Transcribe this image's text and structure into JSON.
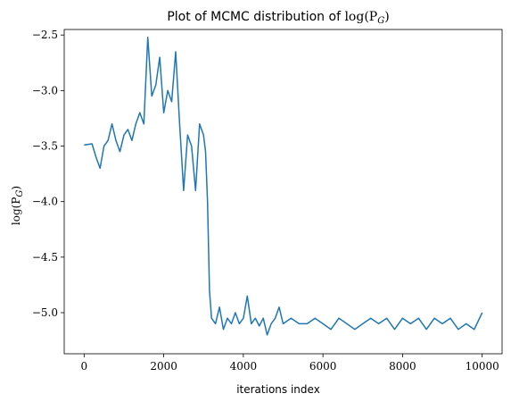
{
  "chart_data": {
    "type": "line",
    "title_prefix": "Plot of MCMC distribution of",
    "title_math": "log(P",
    "title_math_sub": "G",
    "title_math_end": ")",
    "xlabel": "iterations index",
    "ylabel_math": "log(P",
    "ylabel_math_sub": "G",
    "ylabel_math_end": ")",
    "xlim": [
      -500,
      10500
    ],
    "ylim": [
      -5.37,
      -2.45
    ],
    "xticks": [
      0,
      2000,
      4000,
      6000,
      8000,
      10000
    ],
    "xtick_labels": [
      "0",
      "2000",
      "4000",
      "6000",
      "8000",
      "10000"
    ],
    "yticks": [
      -5.0,
      -4.5,
      -4.0,
      -3.5,
      -3.0,
      -2.5
    ],
    "ytick_labels": [
      "−5.0",
      "−4.5",
      "−4.0",
      "−3.5",
      "−3.0",
      "−2.5"
    ],
    "line_color": "#1f77b4",
    "grid": false,
    "series": [
      {
        "x": [
          0,
          200,
          300,
          400,
          500,
          600,
          700,
          800,
          900,
          1000,
          1100,
          1200,
          1300,
          1400,
          1500,
          1600,
          1700,
          1800,
          1900,
          2000,
          2100,
          2200,
          2300,
          2400,
          2500,
          2600,
          2700,
          2800,
          2900,
          3000,
          3050,
          3100,
          3150,
          3200,
          3300,
          3400,
          3500,
          3600,
          3700,
          3800,
          3900,
          4000,
          4100,
          4200,
          4300,
          4400,
          4500,
          4600,
          4700,
          4800,
          4900,
          5000,
          5200,
          5400,
          5600,
          5800,
          6000,
          6200,
          6400,
          6600,
          6800,
          7000,
          7200,
          7400,
          7600,
          7800,
          8000,
          8200,
          8400,
          8600,
          8800,
          9000,
          9200,
          9400,
          9600,
          9800,
          10000
        ],
        "y": [
          -3.49,
          -3.48,
          -3.6,
          -3.7,
          -3.5,
          -3.45,
          -3.3,
          -3.45,
          -3.55,
          -3.4,
          -3.35,
          -3.45,
          -3.3,
          -3.2,
          -3.3,
          -2.52,
          -3.05,
          -2.95,
          -2.7,
          -3.2,
          -3.0,
          -3.1,
          -2.65,
          -3.3,
          -3.9,
          -3.4,
          -3.5,
          -3.9,
          -3.3,
          -3.4,
          -3.55,
          -4.0,
          -4.8,
          -5.05,
          -5.1,
          -4.95,
          -5.15,
          -5.05,
          -5.1,
          -5.0,
          -5.1,
          -5.05,
          -4.85,
          -5.1,
          -5.05,
          -5.12,
          -5.05,
          -5.2,
          -5.1,
          -5.05,
          -4.95,
          -5.1,
          -5.05,
          -5.1,
          -5.1,
          -5.05,
          -5.1,
          -5.15,
          -5.05,
          -5.1,
          -5.15,
          -5.1,
          -5.05,
          -5.1,
          -5.05,
          -5.15,
          -5.05,
          -5.1,
          -5.05,
          -5.15,
          -5.05,
          -5.1,
          -5.05,
          -5.15,
          -5.1,
          -5.15,
          -5.0
        ]
      }
    ]
  }
}
